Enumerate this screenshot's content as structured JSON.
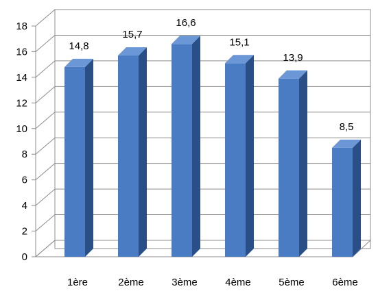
{
  "chart_data": {
    "type": "bar",
    "categories": [
      "1ère",
      "2ème",
      "3ème",
      "4ème",
      "5ème",
      "6ème"
    ],
    "values": [
      14.8,
      15.7,
      16.6,
      15.1,
      13.9,
      8.5
    ],
    "data_labels": [
      "14,8",
      "15,7",
      "16,6",
      "15,1",
      "13,9",
      "8,5"
    ],
    "title": "",
    "xlabel": "",
    "ylabel": "",
    "ylim": [
      0,
      18
    ],
    "yticks": [
      0,
      2,
      4,
      6,
      8,
      10,
      12,
      14,
      16,
      18
    ],
    "grid": true,
    "legend": "none",
    "style": "3d-column",
    "colors": {
      "bar_front": "#4a7cc4",
      "bar_side": "#2a4f86",
      "bar_top": "#6b97d6",
      "grid": "#8c8c8c"
    }
  }
}
